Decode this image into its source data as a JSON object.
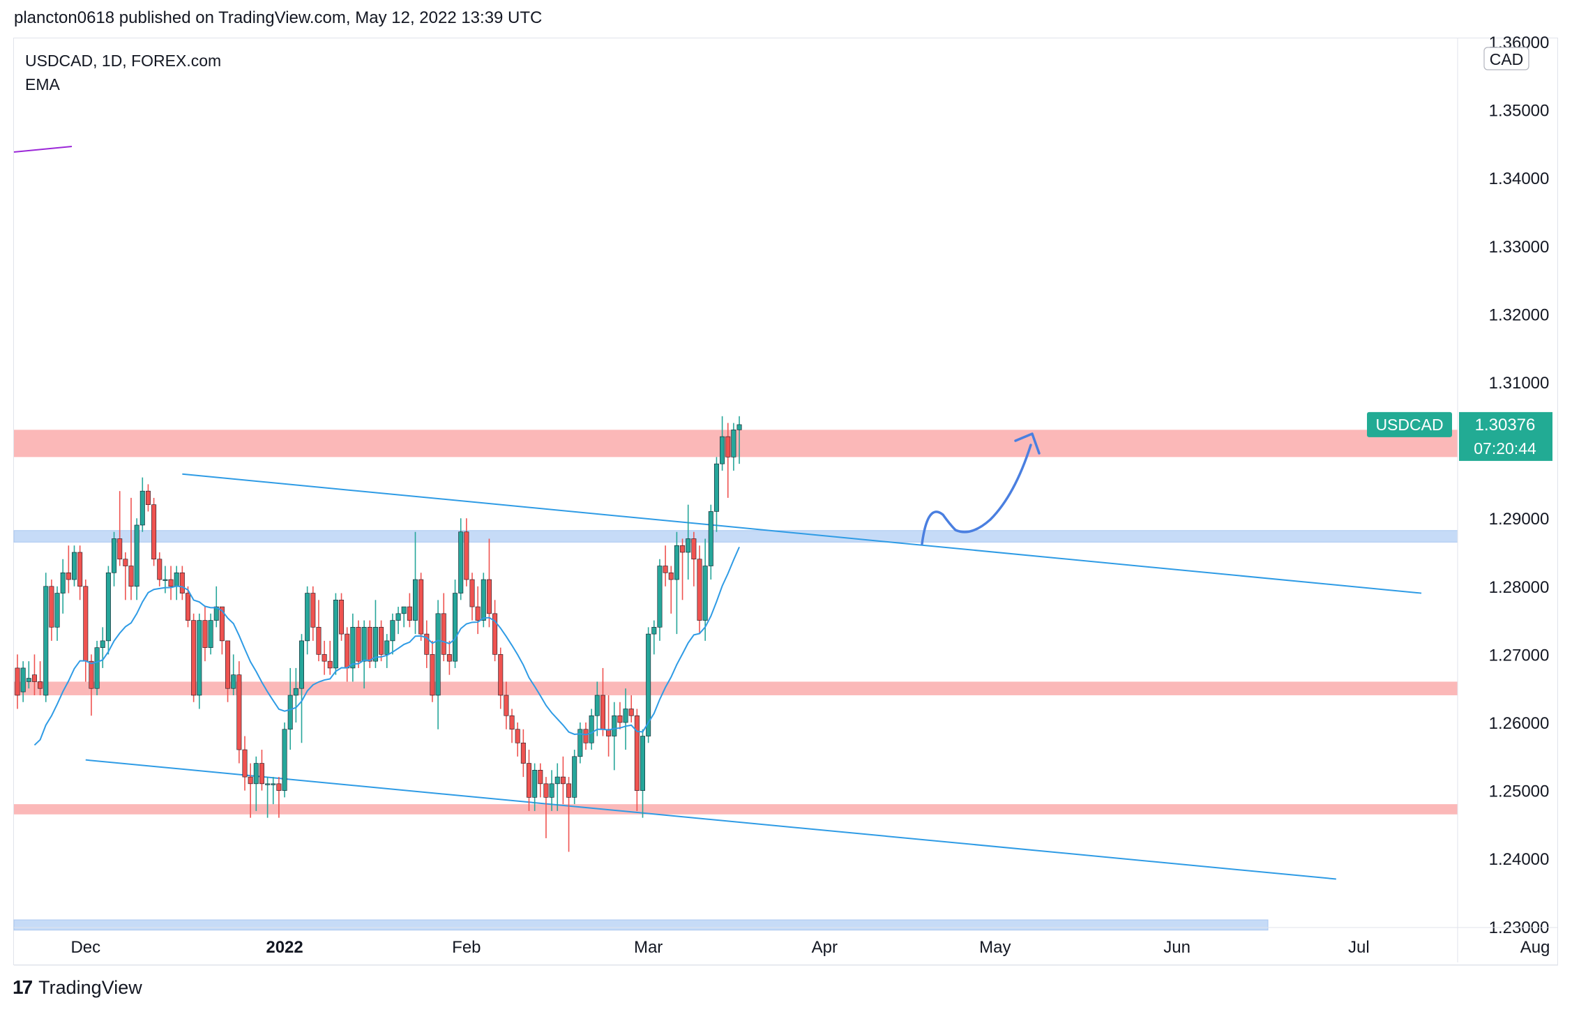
{
  "header": {
    "published": "plancton0618 published on TradingView.com, May 12, 2022 13:39 UTC"
  },
  "legend": {
    "symbol_line": "USDCAD, 1D, FOREX.com",
    "indicator": "EMA"
  },
  "footer": {
    "brand": "TradingView",
    "logo_glyph": "17"
  },
  "colors": {
    "up": "#26a69a",
    "down": "#ef5350",
    "ema": "#2e9be5",
    "resistance_zone": "#fbb8b8",
    "support_zone": "#c6dbf7",
    "channel_line": "#2e9be5",
    "arrow": "#4a7fe0",
    "price_label_bg": "#22ab94"
  },
  "chart_data": {
    "type": "candlestick",
    "title": "USDCAD, 1D, FOREX.com",
    "currency": "CAD",
    "price_axis": {
      "ylim": [
        1.23,
        1.36
      ],
      "ticks": [
        "1.36000",
        "1.35000",
        "1.34000",
        "1.33000",
        "1.32000",
        "1.31000",
        "1.30000",
        "1.29000",
        "1.28000",
        "1.27000",
        "1.26000",
        "1.25000",
        "1.24000",
        "1.23000"
      ]
    },
    "time_axis": {
      "labels": [
        "Dec",
        "2022",
        "Feb",
        "Mar",
        "Apr",
        "May",
        "Jun",
        "Jul",
        "Aug"
      ],
      "bold": [
        false,
        true,
        false,
        false,
        false,
        false,
        false,
        false,
        false
      ],
      "day_index": [
        12,
        47,
        79,
        111,
        142,
        172,
        204,
        236,
        267
      ]
    },
    "last_price": {
      "symbol": "USDCAD",
      "value": "1.30376",
      "countdown": "07:20:44"
    },
    "candles_ohlc": [
      [
        1.268,
        1.27,
        1.262,
        1.264
      ],
      [
        1.2645,
        1.269,
        1.263,
        1.268
      ],
      [
        1.266,
        1.269,
        1.265,
        1.2665
      ],
      [
        1.267,
        1.27,
        1.264,
        1.266
      ],
      [
        1.266,
        1.269,
        1.264,
        1.265
      ],
      [
        1.264,
        1.282,
        1.263,
        1.28
      ],
      [
        1.28,
        1.281,
        1.272,
        1.274
      ],
      [
        1.274,
        1.28,
        1.272,
        1.279
      ],
      [
        1.279,
        1.284,
        1.276,
        1.282
      ],
      [
        1.282,
        1.286,
        1.279,
        1.281
      ],
      [
        1.281,
        1.286,
        1.28,
        1.285
      ],
      [
        1.285,
        1.286,
        1.278,
        1.28
      ],
      [
        1.28,
        1.281,
        1.266,
        1.269
      ],
      [
        1.269,
        1.27,
        1.261,
        1.265
      ],
      [
        1.265,
        1.272,
        1.264,
        1.271
      ],
      [
        1.271,
        1.274,
        1.268,
        1.272
      ],
      [
        1.272,
        1.283,
        1.27,
        1.282
      ],
      [
        1.282,
        1.288,
        1.28,
        1.287
      ],
      [
        1.287,
        1.294,
        1.283,
        1.284
      ],
      [
        1.284,
        1.285,
        1.278,
        1.283
      ],
      [
        1.283,
        1.293,
        1.278,
        1.28
      ],
      [
        1.28,
        1.29,
        1.278,
        1.289
      ],
      [
        1.289,
        1.296,
        1.288,
        1.294
      ],
      [
        1.294,
        1.295,
        1.291,
        1.292
      ],
      [
        1.292,
        1.293,
        1.283,
        1.284
      ],
      [
        1.284,
        1.285,
        1.28,
        1.281
      ],
      [
        1.281,
        1.283,
        1.279,
        1.281
      ],
      [
        1.281,
        1.283,
        1.278,
        1.28
      ],
      [
        1.28,
        1.283,
        1.278,
        1.282
      ],
      [
        1.282,
        1.283,
        1.278,
        1.279
      ],
      [
        1.279,
        1.28,
        1.274,
        1.275
      ],
      [
        1.275,
        1.276,
        1.263,
        1.264
      ],
      [
        1.264,
        1.276,
        1.262,
        1.275
      ],
      [
        1.275,
        1.277,
        1.269,
        1.271
      ],
      [
        1.271,
        1.276,
        1.27,
        1.275
      ],
      [
        1.275,
        1.28,
        1.274,
        1.277
      ],
      [
        1.277,
        1.277,
        1.27,
        1.272
      ],
      [
        1.272,
        1.272,
        1.263,
        1.265
      ],
      [
        1.265,
        1.27,
        1.264,
        1.267
      ],
      [
        1.267,
        1.269,
        1.254,
        1.256
      ],
      [
        1.256,
        1.258,
        1.25,
        1.252
      ],
      [
        1.252,
        1.254,
        1.246,
        1.251
      ],
      [
        1.251,
        1.255,
        1.247,
        1.254
      ],
      [
        1.254,
        1.256,
        1.25,
        1.251
      ],
      [
        1.251,
        1.252,
        1.246,
        1.251
      ],
      [
        1.251,
        1.252,
        1.248,
        1.251
      ],
      [
        1.251,
        1.252,
        1.246,
        1.25
      ],
      [
        1.25,
        1.26,
        1.249,
        1.259
      ],
      [
        1.259,
        1.268,
        1.256,
        1.264
      ],
      [
        1.264,
        1.268,
        1.26,
        1.265
      ],
      [
        1.265,
        1.273,
        1.257,
        1.272
      ],
      [
        1.272,
        1.28,
        1.27,
        1.279
      ],
      [
        1.279,
        1.28,
        1.272,
        1.274
      ],
      [
        1.274,
        1.278,
        1.269,
        1.27
      ],
      [
        1.27,
        1.272,
        1.267,
        1.269
      ],
      [
        1.269,
        1.272,
        1.267,
        1.268
      ],
      [
        1.268,
        1.279,
        1.267,
        1.278
      ],
      [
        1.278,
        1.279,
        1.272,
        1.273
      ],
      [
        1.273,
        1.274,
        1.266,
        1.268
      ],
      [
        1.268,
        1.276,
        1.266,
        1.274
      ],
      [
        1.274,
        1.275,
        1.268,
        1.269
      ],
      [
        1.269,
        1.275,
        1.265,
        1.274
      ],
      [
        1.274,
        1.275,
        1.268,
        1.269
      ],
      [
        1.269,
        1.278,
        1.268,
        1.274
      ],
      [
        1.274,
        1.275,
        1.269,
        1.27
      ],
      [
        1.27,
        1.273,
        1.268,
        1.272
      ],
      [
        1.272,
        1.276,
        1.27,
        1.275
      ],
      [
        1.275,
        1.277,
        1.273,
        1.276
      ],
      [
        1.276,
        1.277,
        1.274,
        1.277
      ],
      [
        1.277,
        1.279,
        1.274,
        1.275
      ],
      [
        1.275,
        1.288,
        1.273,
        1.281
      ],
      [
        1.281,
        1.282,
        1.272,
        1.273
      ],
      [
        1.273,
        1.275,
        1.268,
        1.27
      ],
      [
        1.27,
        1.272,
        1.263,
        1.264
      ],
      [
        1.264,
        1.278,
        1.259,
        1.276
      ],
      [
        1.276,
        1.279,
        1.269,
        1.27
      ],
      [
        1.27,
        1.272,
        1.267,
        1.269
      ],
      [
        1.269,
        1.281,
        1.268,
        1.279
      ],
      [
        1.279,
        1.29,
        1.278,
        1.288
      ],
      [
        1.288,
        1.29,
        1.28,
        1.281
      ],
      [
        1.281,
        1.282,
        1.275,
        1.277
      ],
      [
        1.277,
        1.28,
        1.273,
        1.275
      ],
      [
        1.275,
        1.282,
        1.274,
        1.281
      ],
      [
        1.281,
        1.287,
        1.274,
        1.276
      ],
      [
        1.276,
        1.278,
        1.269,
        1.27
      ],
      [
        1.27,
        1.271,
        1.262,
        1.264
      ],
      [
        1.264,
        1.266,
        1.259,
        1.261
      ],
      [
        1.261,
        1.262,
        1.257,
        1.259
      ],
      [
        1.259,
        1.26,
        1.255,
        1.257
      ],
      [
        1.257,
        1.259,
        1.252,
        1.254
      ],
      [
        1.254,
        1.256,
        1.247,
        1.249
      ],
      [
        1.249,
        1.254,
        1.247,
        1.253
      ],
      [
        1.253,
        1.254,
        1.249,
        1.251
      ],
      [
        1.251,
        1.252,
        1.243,
        1.249
      ],
      [
        1.249,
        1.253,
        1.247,
        1.251
      ],
      [
        1.251,
        1.254,
        1.247,
        1.252
      ],
      [
        1.252,
        1.255,
        1.248,
        1.251
      ],
      [
        1.251,
        1.252,
        1.241,
        1.249
      ],
      [
        1.249,
        1.256,
        1.248,
        1.255
      ],
      [
        1.255,
        1.26,
        1.254,
        1.259
      ],
      [
        1.259,
        1.26,
        1.256,
        1.257
      ],
      [
        1.257,
        1.262,
        1.256,
        1.261
      ],
      [
        1.261,
        1.266,
        1.258,
        1.264
      ],
      [
        1.264,
        1.268,
        1.258,
        1.259
      ],
      [
        1.259,
        1.264,
        1.255,
        1.258
      ],
      [
        1.258,
        1.263,
        1.253,
        1.261
      ],
      [
        1.261,
        1.263,
        1.259,
        1.26
      ],
      [
        1.26,
        1.265,
        1.256,
        1.262
      ],
      [
        1.262,
        1.264,
        1.26,
        1.261
      ],
      [
        1.261,
        1.262,
        1.247,
        1.25
      ],
      [
        1.25,
        1.259,
        1.246,
        1.258
      ],
      [
        1.258,
        1.274,
        1.257,
        1.273
      ],
      [
        1.273,
        1.275,
        1.27,
        1.274
      ],
      [
        1.274,
        1.284,
        1.272,
        1.283
      ],
      [
        1.283,
        1.286,
        1.28,
        1.282
      ],
      [
        1.282,
        1.283,
        1.276,
        1.281
      ],
      [
        1.281,
        1.288,
        1.273,
        1.286
      ],
      [
        1.286,
        1.287,
        1.278,
        1.285
      ],
      [
        1.285,
        1.292,
        1.281,
        1.287
      ],
      [
        1.287,
        1.288,
        1.28,
        1.284
      ],
      [
        1.284,
        1.286,
        1.273,
        1.275
      ],
      [
        1.275,
        1.287,
        1.272,
        1.283
      ],
      [
        1.283,
        1.292,
        1.281,
        1.291
      ],
      [
        1.291,
        1.299,
        1.288,
        1.298
      ],
      [
        1.298,
        1.305,
        1.297,
        1.302
      ],
      [
        1.302,
        1.304,
        1.293,
        1.299
      ],
      [
        1.299,
        1.304,
        1.297,
        1.303
      ],
      [
        1.303,
        1.305,
        1.298,
        1.30376
      ]
    ],
    "ema_line": {
      "start_day": 0,
      "start_value": 1.252,
      "end_value": 1.283
    },
    "zones": [
      {
        "kind": "resistance",
        "low": 1.299,
        "high": 1.303
      },
      {
        "kind": "support",
        "low": 1.2865,
        "high": 1.2882
      },
      {
        "kind": "resistance",
        "low": 1.264,
        "high": 1.266
      },
      {
        "kind": "resistance",
        "low": 1.2465,
        "high": 1.248
      },
      {
        "kind": "support",
        "low": 1.2295,
        "high": 1.231
      }
    ],
    "channel_lines": [
      {
        "from": [
          29,
          1.2965
        ],
        "to": [
          247,
          1.279
        ]
      },
      {
        "from": [
          12,
          1.2545
        ],
        "to": [
          232,
          1.237
        ]
      }
    ],
    "visible_days": 266,
    "annotations": [
      "drawn blue curve with arrow pointing up"
    ]
  }
}
